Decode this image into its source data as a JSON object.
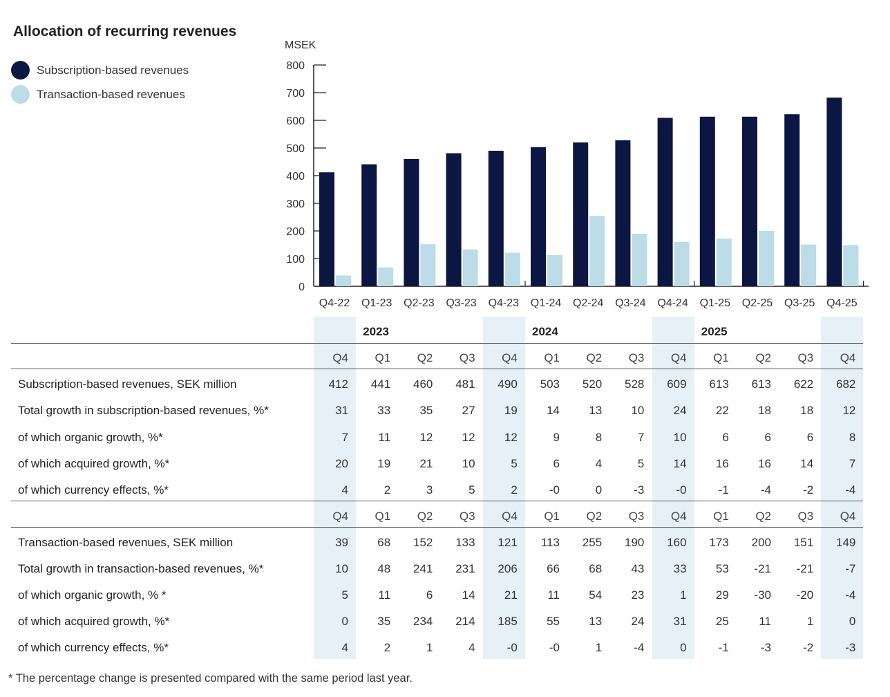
{
  "chart_data": {
    "type": "bar",
    "title": "Allocation of recurring revenues",
    "ylabel": "MSEK",
    "xlabel": "",
    "ylim": [
      0,
      800
    ],
    "yticks": [
      0,
      100,
      200,
      300,
      400,
      500,
      600,
      700,
      800
    ],
    "categories": [
      "Q4-22",
      "Q1-23",
      "Q2-23",
      "Q3-23",
      "Q4-23",
      "Q1-24",
      "Q2-24",
      "Q3-24",
      "Q4-24",
      "Q1-25",
      "Q2-25",
      "Q3-25",
      "Q4-25"
    ],
    "series": [
      {
        "name": "Subscription-based revenues",
        "color": "#0b1742",
        "values": [
          412,
          441,
          460,
          481,
          490,
          503,
          520,
          528,
          609,
          613,
          613,
          622,
          682
        ]
      },
      {
        "name": "Transaction-based revenues",
        "color": "#bcdce8",
        "values": [
          39,
          68,
          152,
          133,
          121,
          113,
          255,
          190,
          160,
          173,
          200,
          151,
          149
        ]
      }
    ],
    "legend_position": "top-left"
  },
  "table": {
    "years": [
      "2023",
      "2024",
      "2025"
    ],
    "quarters": [
      "Q4",
      "Q1",
      "Q2",
      "Q3",
      "Q4",
      "Q1",
      "Q2",
      "Q3",
      "Q4",
      "Q1",
      "Q2",
      "Q3",
      "Q4"
    ],
    "sub_rows": [
      {
        "label": "Subscription-based revenues, SEK million",
        "values": [
          "412",
          "441",
          "460",
          "481",
          "490",
          "503",
          "520",
          "528",
          "609",
          "613",
          "613",
          "622",
          "682"
        ]
      },
      {
        "label": "Total growth in subscription-based revenues, %*",
        "values": [
          "31",
          "33",
          "35",
          "27",
          "19",
          "14",
          "13",
          "10",
          "24",
          "22",
          "18",
          "18",
          "12"
        ]
      },
      {
        "label": "of which organic growth, %*",
        "values": [
          "7",
          "11",
          "12",
          "12",
          "12",
          "9",
          "8",
          "7",
          "10",
          "6",
          "6",
          "6",
          "8"
        ]
      },
      {
        "label": "of which acquired growth, %*",
        "values": [
          "20",
          "19",
          "21",
          "10",
          "5",
          "6",
          "4",
          "5",
          "14",
          "16",
          "16",
          "14",
          "7"
        ]
      },
      {
        "label": "of which currency effects, %*",
        "values": [
          "4",
          "2",
          "3",
          "5",
          "2",
          "-0",
          "0",
          "-3",
          "-0",
          "-1",
          "-4",
          "-2",
          "-4"
        ]
      }
    ],
    "tx_rows": [
      {
        "label": "Transaction-based revenues, SEK million",
        "values": [
          "39",
          "68",
          "152",
          "133",
          "121",
          "113",
          "255",
          "190",
          "160",
          "173",
          "200",
          "151",
          "149"
        ]
      },
      {
        "label": "Total growth in transaction-based revenues, %*",
        "values": [
          "10",
          "48",
          "241",
          "231",
          "206",
          "66",
          "68",
          "43",
          "33",
          "53",
          "-21",
          "-21",
          "-7"
        ]
      },
      {
        "label": "of which organic growth, % *",
        "values": [
          "5",
          "11",
          "6",
          "14",
          "21",
          "11",
          "54",
          "23",
          "1",
          "29",
          "-30",
          "-20",
          "-4"
        ]
      },
      {
        "label": "of which acquired growth, %*",
        "values": [
          "0",
          "35",
          "234",
          "214",
          "185",
          "55",
          "13",
          "24",
          "31",
          "25",
          "11",
          "1",
          "0"
        ]
      },
      {
        "label": "of which currency effects, %*",
        "values": [
          "4",
          "2",
          "1",
          "4",
          "-0",
          "-0",
          "1",
          "-4",
          "0",
          "-1",
          "-3",
          "-2",
          "-3"
        ]
      }
    ]
  },
  "footnote": "* The percentage change is presented compared with the same period last year."
}
